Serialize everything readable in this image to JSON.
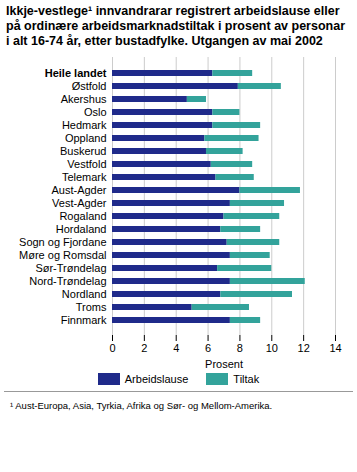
{
  "chart_data": {
    "type": "bar",
    "orientation": "horizontal",
    "stacked": true,
    "title": "Ikkje-vestlege¹ innvandrarar registrert arbeidslause eller på ordinære arbeidsmarknadstiltak i prosent av personar i alt 16-74 år, etter bustadfylke. Utgangen av mai 2002",
    "footnote": "¹ Aust-Europa, Asia, Tyrkia, Afrika og Sør- og Mellom-Amerika.",
    "x_label": "Prosent",
    "categories": [
      "Heile landet",
      "Østfold",
      "Akershus",
      "Oslo",
      "Hedmark",
      "Oppland",
      "Buskerud",
      "Vestfold",
      "Telemark",
      "Aust-Agder",
      "Vest-Agder",
      "Rogaland",
      "Hordaland",
      "Sogn og Fjordane",
      "Møre og Romsdal",
      "Sør-Trøndelag",
      "Nord-Trøndelag",
      "Nordland",
      "Troms",
      "Finnmark"
    ],
    "series": [
      {
        "name": "Arbeidslause",
        "color": "#1f2a8a",
        "values": [
          6.3,
          7.9,
          4.7,
          6.3,
          6.3,
          5.8,
          5.9,
          6.2,
          6.5,
          8.0,
          7.4,
          7.0,
          6.8,
          7.2,
          7.4,
          6.6,
          7.4,
          6.8,
          5.0,
          7.4
        ]
      },
      {
        "name": "Tiltak",
        "color": "#33a39b",
        "values": [
          2.5,
          2.7,
          1.2,
          1.7,
          3.0,
          3.4,
          2.3,
          2.6,
          2.4,
          3.8,
          3.4,
          3.5,
          2.5,
          3.3,
          2.5,
          3.4,
          4.7,
          4.5,
          3.6,
          1.9
        ]
      }
    ],
    "xlim": [
      0,
      14
    ],
    "xticks": [
      0,
      2,
      4,
      6,
      8,
      10,
      12,
      14
    ],
    "grid": true,
    "legend": "bottom"
  }
}
